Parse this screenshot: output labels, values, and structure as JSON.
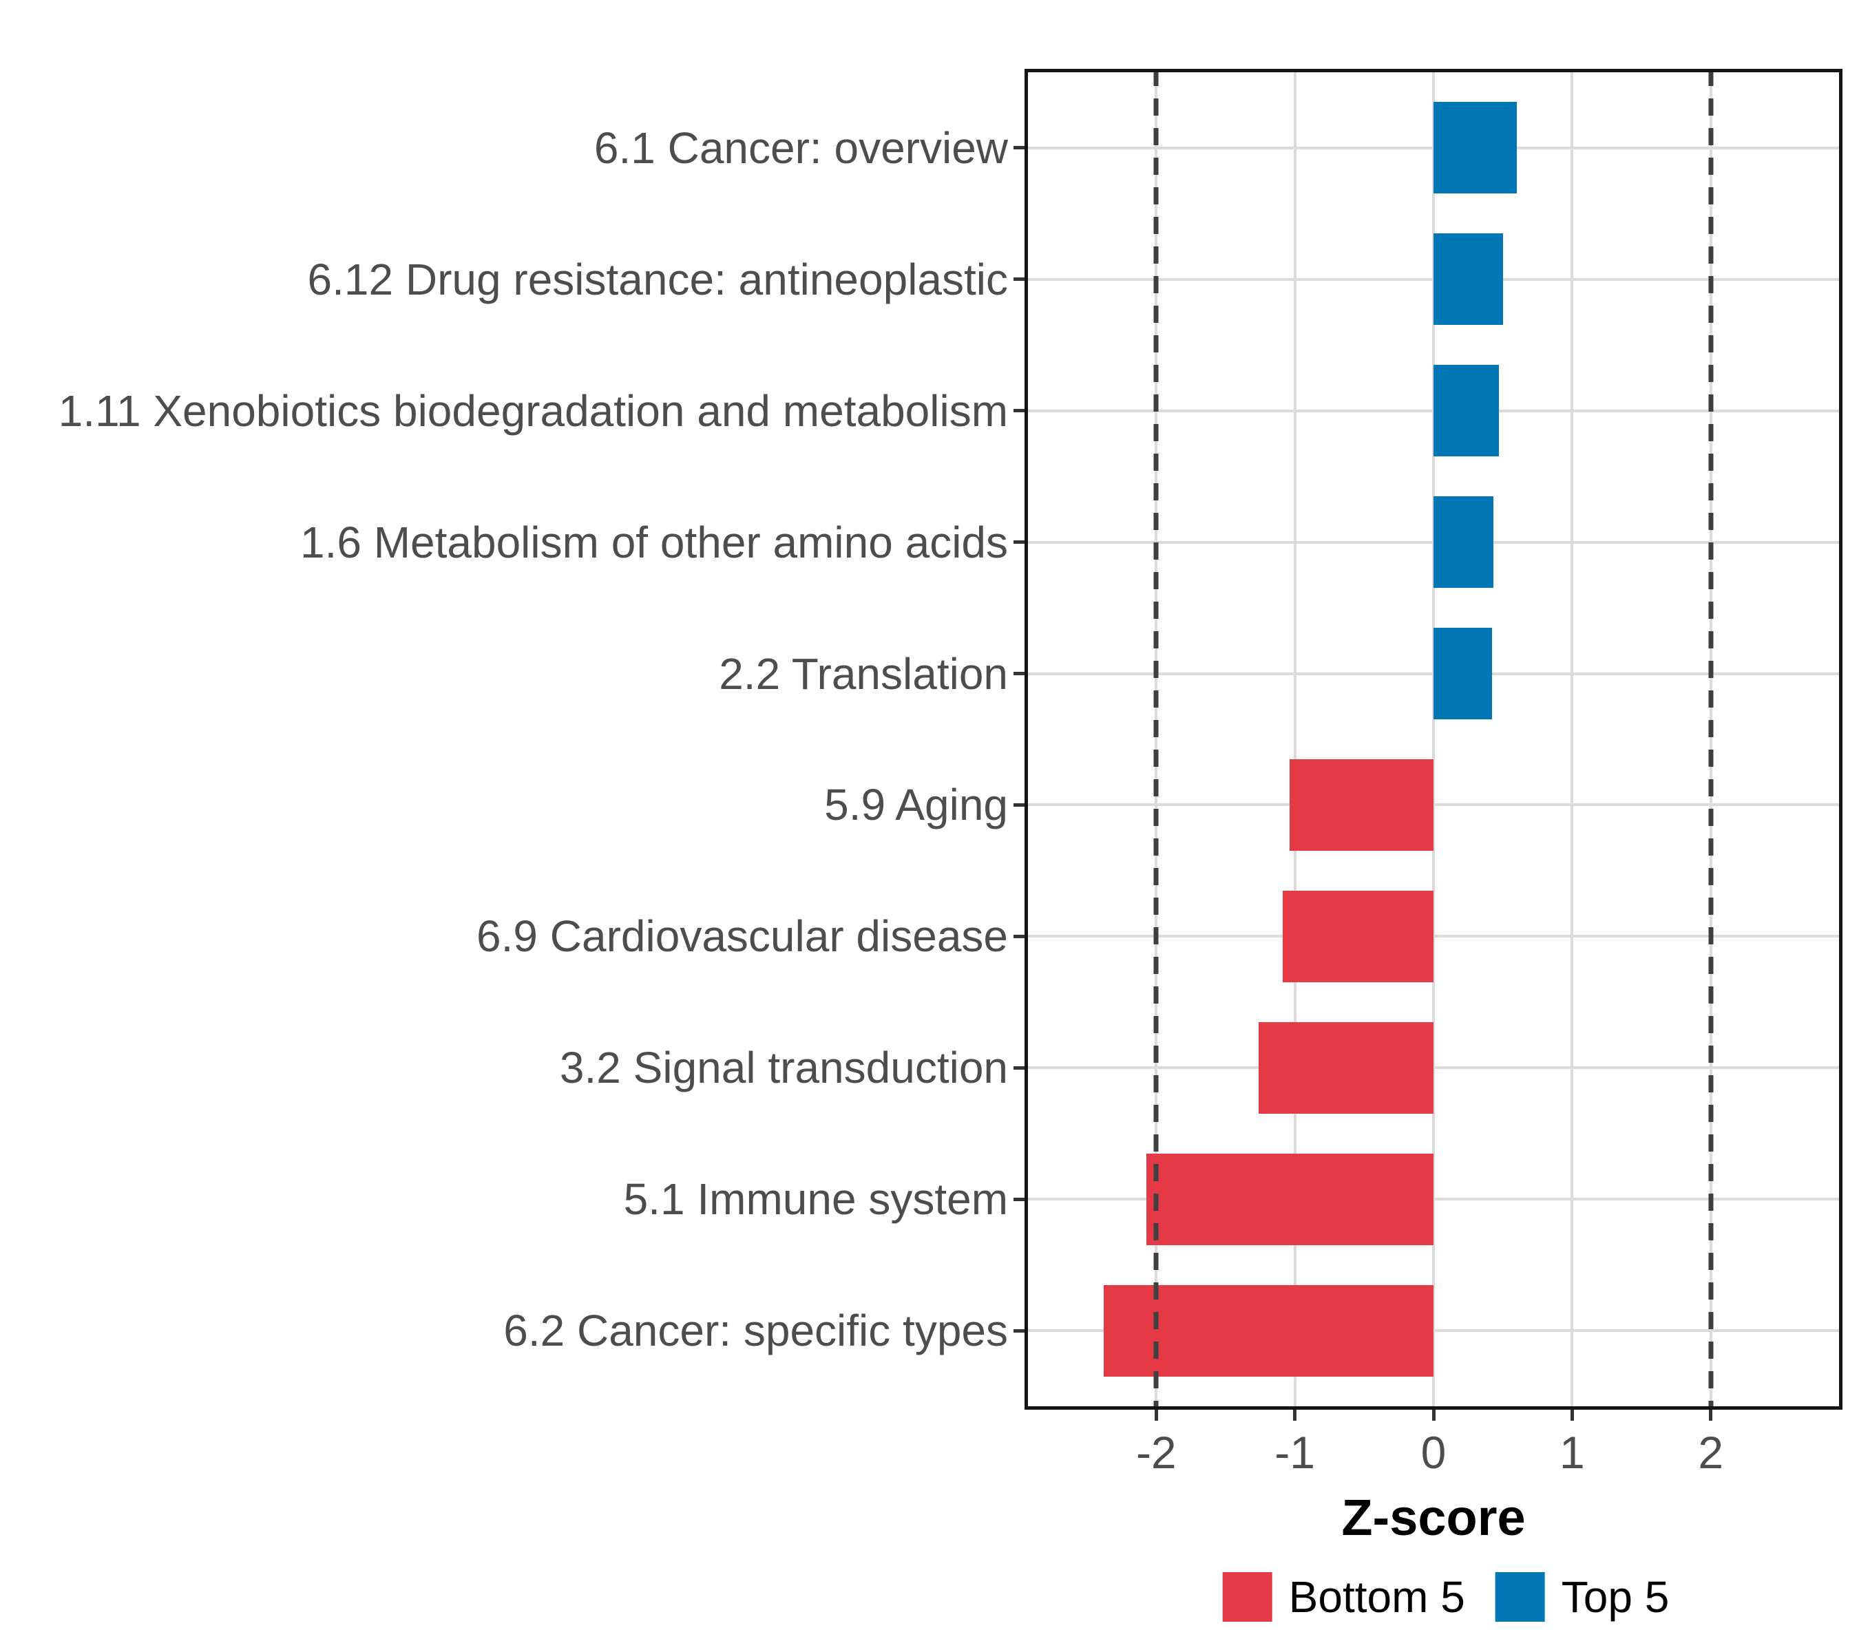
{
  "chart_data": {
    "type": "bar",
    "orientation": "horizontal",
    "title": "",
    "xlabel": "Z-score",
    "ylabel": "",
    "categories": [
      "6.1 Cancer: overview",
      "6.12 Drug resistance: antineoplastic",
      "1.11 Xenobiotics biodegradation and metabolism",
      "1.6 Metabolism of other amino acids",
      "2.2 Translation",
      "5.9 Aging",
      "6.9 Cardiovascular disease",
      "3.2 Signal transduction",
      "5.1 Immune system",
      "6.2 Cancer: specific types"
    ],
    "series": [
      {
        "name": "Z-score",
        "values": [
          0.6,
          0.5,
          0.47,
          0.43,
          0.42,
          -1.04,
          -1.09,
          -1.26,
          -2.07,
          -2.38
        ]
      }
    ],
    "groups": [
      "Top 5",
      "Top 5",
      "Top 5",
      "Top 5",
      "Top 5",
      "Bottom 5",
      "Bottom 5",
      "Bottom 5",
      "Bottom 5",
      "Bottom 5"
    ],
    "x_ticks": [
      -2,
      -1,
      0,
      1,
      2
    ],
    "x_tick_labels": [
      "-2",
      "-1",
      "0",
      "1",
      "2"
    ],
    "xlim": [
      -2.95,
      2.95
    ],
    "reference_lines": [
      -2,
      2
    ],
    "bar_width_fraction": 0.7,
    "grid": true,
    "legend_position": "bottom",
    "legend": [
      {
        "label": "Bottom 5",
        "color": "#E63946"
      },
      {
        "label": "Top 5",
        "color": "#0076B4"
      }
    ],
    "colors": {
      "bottom5_red": "#E63946",
      "top5_blue": "#0076B4",
      "gridline": "#DBDBDB",
      "reference_line": "#3F3F3F",
      "panel_border": "#151515",
      "axis_tick": "#333333",
      "axis_text": "#4D4D4D",
      "title_text": "#000000"
    }
  }
}
